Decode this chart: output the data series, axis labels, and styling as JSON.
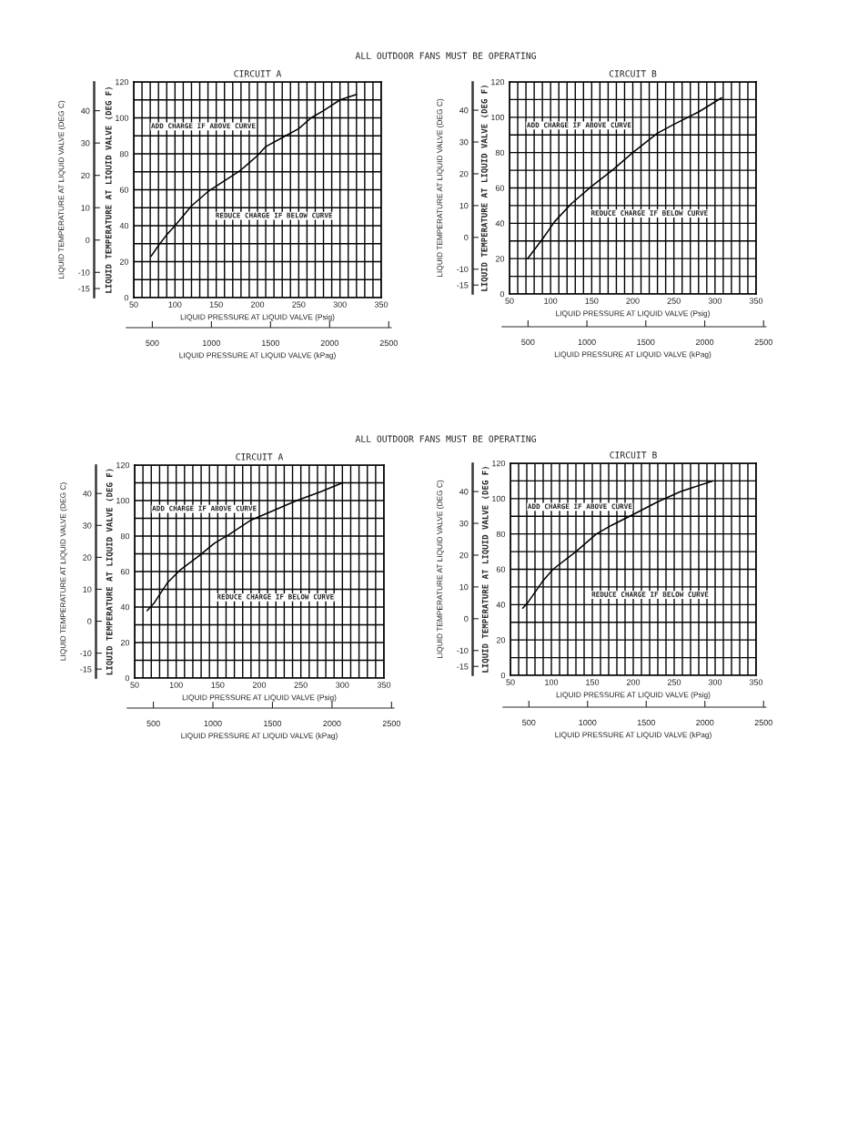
{
  "chart_data": [
    {
      "type": "line",
      "title": "CIRCUIT A",
      "subtitle": "ALL OUTDOOR FANS MUST BE OPERATING",
      "xlabel": "LIQUID PRESSURE AT LIQUID VALVE (Psig)",
      "ylabel": "LIQUID TEMPERATURE AT LIQUID VALVE (DEG F)",
      "y2label": "LIQUID TEMPERATURE AT LIQUID VALVE (DEG C)",
      "x2label": "LIQUID PRESSURE AT LIQUID VALVE (kPag)",
      "annotations": [
        "ADD CHARGE IF ABOVE CURVE",
        "REDUCE CHARGE IF BELOW CURVE"
      ],
      "series": [
        {
          "color": "#000000",
          "x": [
            71,
            80,
            90,
            100,
            120,
            140,
            160,
            180,
            190,
            200,
            210,
            230,
            250,
            265,
            280,
            300,
            320
          ],
          "values": [
            23,
            29,
            35,
            40,
            51,
            59,
            65,
            71,
            75,
            79,
            84,
            89,
            94,
            100,
            104,
            110,
            113
          ]
        }
      ],
      "xlim": [
        50,
        350
      ],
      "xticks": [
        50,
        {
          "value": 60,
          "label": null
        },
        {
          "value": 70,
          "label": null
        },
        {
          "value": 80,
          "label": null
        },
        {
          "value": 90,
          "label": null
        },
        100,
        {
          "value": 110,
          "label": null
        },
        {
          "value": 120,
          "label": null
        },
        {
          "value": 130,
          "label": null
        },
        {
          "value": 140,
          "label": null
        },
        150,
        {
          "value": 160,
          "label": null
        },
        {
          "value": 170,
          "label": null
        },
        {
          "value": 180,
          "label": null
        },
        {
          "value": 190,
          "label": null
        },
        200,
        {
          "value": 210,
          "label": null
        },
        {
          "value": 220,
          "label": null
        },
        {
          "value": 230,
          "label": null
        },
        {
          "value": 240,
          "label": null
        },
        250,
        {
          "value": 260,
          "label": null
        },
        {
          "value": 270,
          "label": null
        },
        {
          "value": 280,
          "label": null
        },
        {
          "value": 290,
          "label": null
        },
        300,
        {
          "value": 310,
          "label": null
        },
        {
          "value": 320,
          "label": null
        },
        {
          "value": 330,
          "label": null
        },
        {
          "value": 340,
          "label": null
        },
        350
      ],
      "ylim": [
        0,
        120
      ],
      "yticks": [
        0,
        {
          "value": 10,
          "label": null
        },
        20,
        {
          "value": 30,
          "label": null
        },
        40,
        {
          "value": 50,
          "label": null
        },
        60,
        {
          "value": 70,
          "label": null
        },
        80,
        {
          "value": 90,
          "label": null
        },
        100,
        {
          "value": 110,
          "label": null
        },
        120
      ],
      "y2lim": [
        -17.8,
        48.9
      ],
      "y2ticks": [
        -15,
        -10,
        0,
        10,
        20,
        30,
        40
      ],
      "x2lim": [
        280,
        2520
      ],
      "x2ticks": [
        500,
        1000,
        1500,
        2000,
        2500
      ],
      "grid": true,
      "line_style": "solid",
      "marker": "none"
    },
    {
      "type": "line",
      "title": "CIRCUIT B",
      "xlabel": "LIQUID PRESSURE AT LIQUID VALVE (Psig)",
      "ylabel": "LIQUID TEMPERATURE AT LIQUID VALVE (DEG F)",
      "y2label": "LIQUID TEMPERATURE AT LIQUID VALVE (DEG C)",
      "x2label": "LIQUID PRESSURE AT LIQUID VALVE (kPag)",
      "annotations": [
        "ADD CHARGE IF ABOVE CURVE",
        "REDUCE CHARGE IF BELOW CURVE"
      ],
      "series": [
        {
          "color": "#000000",
          "x": [
            72,
            90,
            105,
            125,
            150,
            175,
            200,
            230,
            250,
            280,
            308
          ],
          "values": [
            20,
            31,
            41,
            51,
            61,
            70,
            80,
            91,
            96,
            103,
            111
          ]
        }
      ],
      "xlim": [
        50,
        350
      ],
      "xticks": [
        50,
        {
          "value": 60,
          "label": null
        },
        {
          "value": 70,
          "label": null
        },
        {
          "value": 80,
          "label": null
        },
        {
          "value": 90,
          "label": null
        },
        100,
        {
          "value": 110,
          "label": null
        },
        {
          "value": 120,
          "label": null
        },
        {
          "value": 130,
          "label": null
        },
        {
          "value": 140,
          "label": null
        },
        150,
        {
          "value": 160,
          "label": null
        },
        {
          "value": 170,
          "label": null
        },
        {
          "value": 180,
          "label": null
        },
        {
          "value": 190,
          "label": null
        },
        200,
        {
          "value": 210,
          "label": null
        },
        {
          "value": 220,
          "label": null
        },
        {
          "value": 230,
          "label": null
        },
        {
          "value": 240,
          "label": null
        },
        250,
        {
          "value": 260,
          "label": null
        },
        {
          "value": 270,
          "label": null
        },
        {
          "value": 280,
          "label": null
        },
        {
          "value": 290,
          "label": null
        },
        300,
        {
          "value": 310,
          "label": null
        },
        {
          "value": 320,
          "label": null
        },
        {
          "value": 330,
          "label": null
        },
        {
          "value": 340,
          "label": null
        },
        350
      ],
      "ylim": [
        0,
        120
      ],
      "yticks": [
        0,
        {
          "value": 10,
          "label": null
        },
        20,
        {
          "value": 30,
          "label": null
        },
        40,
        {
          "value": 50,
          "label": null
        },
        60,
        {
          "value": 70,
          "label": null
        },
        80,
        {
          "value": 90,
          "label": null
        },
        100,
        {
          "value": 110,
          "label": null
        },
        120
      ],
      "y2lim": [
        -17.8,
        48.9
      ],
      "y2ticks": [
        -15,
        -10,
        0,
        10,
        20,
        30,
        40
      ],
      "x2lim": [
        280,
        2520
      ],
      "x2ticks": [
        500,
        1000,
        1500,
        2000,
        2500
      ],
      "grid": true,
      "line_style": "solid",
      "marker": "none"
    },
    {
      "type": "line",
      "title": "CIRCUIT A",
      "subtitle": "ALL OUTDOOR FANS MUST BE OPERATING",
      "xlabel": "LIQUID PRESSURE AT LIQUID VALVE (Psig)",
      "ylabel": "LIQUID TEMPERATURE AT LIQUID VALVE (DEG F)",
      "y2label": "LIQUID TEMPERATURE AT LIQUID VALVE (DEG C)",
      "x2label": "LIQUID PRESSURE AT LIQUID VALVE (kPag)",
      "annotations": [
        "ADD CHARGE IF ABOVE CURVE",
        "REDUCE CHARGE IF BELOW CURVE"
      ],
      "series": [
        {
          "color": "#000000",
          "x": [
            65,
            73,
            90,
            105,
            128,
            146,
            164,
            190,
            215,
            245,
            274,
            300
          ],
          "values": [
            38,
            42,
            54,
            61,
            69,
            76,
            81,
            89,
            94,
            100,
            105,
            110
          ]
        }
      ],
      "xlim": [
        50,
        350
      ],
      "xticks": [
        50,
        {
          "value": 60,
          "label": null
        },
        {
          "value": 70,
          "label": null
        },
        {
          "value": 80,
          "label": null
        },
        {
          "value": 90,
          "label": null
        },
        100,
        {
          "value": 110,
          "label": null
        },
        {
          "value": 120,
          "label": null
        },
        {
          "value": 130,
          "label": null
        },
        {
          "value": 140,
          "label": null
        },
        150,
        {
          "value": 160,
          "label": null
        },
        {
          "value": 170,
          "label": null
        },
        {
          "value": 180,
          "label": null
        },
        {
          "value": 190,
          "label": null
        },
        200,
        {
          "value": 210,
          "label": null
        },
        {
          "value": 220,
          "label": null
        },
        {
          "value": 230,
          "label": null
        },
        {
          "value": 240,
          "label": null
        },
        250,
        {
          "value": 260,
          "label": null
        },
        {
          "value": 270,
          "label": null
        },
        {
          "value": 280,
          "label": null
        },
        {
          "value": 290,
          "label": null
        },
        300,
        {
          "value": 310,
          "label": null
        },
        {
          "value": 320,
          "label": null
        },
        {
          "value": 330,
          "label": null
        },
        {
          "value": 340,
          "label": null
        },
        350
      ],
      "ylim": [
        0,
        120
      ],
      "yticks": [
        0,
        {
          "value": 10,
          "label": null
        },
        20,
        {
          "value": 30,
          "label": null
        },
        40,
        {
          "value": 50,
          "label": null
        },
        60,
        {
          "value": 70,
          "label": null
        },
        80,
        {
          "value": 90,
          "label": null
        },
        100,
        {
          "value": 110,
          "label": null
        },
        120
      ],
      "y2lim": [
        -17.8,
        48.9
      ],
      "y2ticks": [
        -15,
        -10,
        0,
        10,
        20,
        30,
        40
      ],
      "x2lim": [
        280,
        2520
      ],
      "x2ticks": [
        500,
        1000,
        1500,
        2000,
        2500
      ],
      "grid": true,
      "line_style": "solid",
      "marker": "none"
    },
    {
      "type": "line",
      "title": "CIRCUIT B",
      "xlabel": "LIQUID PRESSURE AT LIQUID VALVE (Psig)",
      "ylabel": "LIQUID TEMPERATURE AT LIQUID VALVE (DEG F)",
      "y2label": "LIQUID TEMPERATURE AT LIQUID VALVE (DEG C)",
      "x2label": "LIQUID PRESSURE AT LIQUID VALVE (kPag)",
      "annotations": [
        "ADD CHARGE IF ABOVE CURVE",
        "REDUCE CHARGE IF BELOW CURVE"
      ],
      "series": [
        {
          "color": "#000000",
          "x": [
            65,
            71,
            89,
            102,
            130,
            155,
            174,
            200,
            229,
            258,
            297
          ],
          "values": [
            38,
            41,
            53,
            60,
            70,
            80,
            85,
            91,
            98,
            104,
            110
          ]
        }
      ],
      "xlim": [
        50,
        350
      ],
      "xticks": [
        50,
        {
          "value": 60,
          "label": null
        },
        {
          "value": 70,
          "label": null
        },
        {
          "value": 80,
          "label": null
        },
        {
          "value": 90,
          "label": null
        },
        100,
        {
          "value": 110,
          "label": null
        },
        {
          "value": 120,
          "label": null
        },
        {
          "value": 130,
          "label": null
        },
        {
          "value": 140,
          "label": null
        },
        150,
        {
          "value": 160,
          "label": null
        },
        {
          "value": 170,
          "label": null
        },
        {
          "value": 180,
          "label": null
        },
        {
          "value": 190,
          "label": null
        },
        200,
        {
          "value": 210,
          "label": null
        },
        {
          "value": 220,
          "label": null
        },
        {
          "value": 230,
          "label": null
        },
        {
          "value": 240,
          "label": null
        },
        250,
        {
          "value": 260,
          "label": null
        },
        {
          "value": 270,
          "label": null
        },
        {
          "value": 280,
          "label": null
        },
        {
          "value": 290,
          "label": null
        },
        300,
        {
          "value": 310,
          "label": null
        },
        {
          "value": 320,
          "label": null
        },
        {
          "value": 330,
          "label": null
        },
        {
          "value": 340,
          "label": null
        },
        350
      ],
      "ylim": [
        0,
        120
      ],
      "yticks": [
        0,
        {
          "value": 10,
          "label": null
        },
        20,
        {
          "value": 30,
          "label": null
        },
        40,
        {
          "value": 50,
          "label": null
        },
        60,
        {
          "value": 70,
          "label": null
        },
        80,
        {
          "value": 90,
          "label": null
        },
        100,
        {
          "value": 110,
          "label": null
        },
        120
      ],
      "y2lim": [
        -17.8,
        48.9
      ],
      "y2ticks": [
        -15,
        -10,
        0,
        10,
        20,
        30,
        40
      ],
      "x2lim": [
        280,
        2520
      ],
      "x2ticks": [
        500,
        1000,
        1500,
        2000,
        2500
      ],
      "grid": true,
      "line_style": "solid",
      "marker": "none"
    }
  ]
}
